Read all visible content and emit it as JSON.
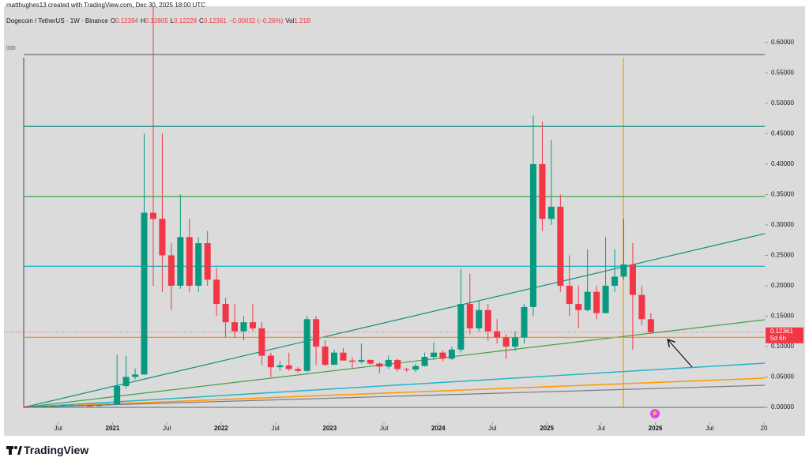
{
  "header": {
    "credit": "matthughes13 created with TradingView.com, Dec 30, 2025 18:00 UTC"
  },
  "footer": {
    "brand": "TradingView"
  },
  "chart_data": {
    "type": "candlestick",
    "title": "Dogecoin / TetherUS · 1W · Binance",
    "legend": [
      [
        "O",
        "0.12394"
      ],
      [
        "H",
        "0.12805"
      ],
      [
        "L",
        "0.12228"
      ],
      [
        "C",
        "0.12361"
      ],
      [
        "",
        "−0.00032 (−0.26%)"
      ],
      [
        "Vol",
        "1.21B"
      ]
    ],
    "clipped_label": "000",
    "x": [
      "2020-03",
      "2020-04",
      "2020-05",
      "2020-06",
      "2020-07",
      "2020-08",
      "2020-09",
      "2020-10",
      "2020-11",
      "2020-12",
      "2021-01",
      "2021-02",
      "2021-03",
      "2021-04",
      "2021-05",
      "2021-06",
      "2021-07",
      "2021-08",
      "2021-09",
      "2021-10",
      "2021-11",
      "2021-12",
      "2022-01",
      "2022-02",
      "2022-03",
      "2022-04",
      "2022-05",
      "2022-06",
      "2022-07",
      "2022-08",
      "2022-09",
      "2022-10",
      "2022-11",
      "2022-12",
      "2023-01",
      "2023-02",
      "2023-03",
      "2023-04",
      "2023-05",
      "2023-06",
      "2023-07",
      "2023-08",
      "2023-09",
      "2023-10",
      "2023-11",
      "2023-12",
      "2024-01",
      "2024-02",
      "2024-03",
      "2024-04",
      "2024-05",
      "2024-06",
      "2024-07",
      "2024-08",
      "2024-09",
      "2024-10",
      "2024-11",
      "2024-12",
      "2025-01",
      "2025-02",
      "2025-03",
      "2025-04",
      "2025-05",
      "2025-06",
      "2025-07",
      "2025-08",
      "2025-09",
      "2025-10",
      "2025-11",
      "2025-12"
    ],
    "open": [
      0.002,
      0.0017,
      0.002,
      0.0025,
      0.0025,
      0.0033,
      0.0035,
      0.0027,
      0.0026,
      0.0034,
      0.0047,
      0.035,
      0.05,
      0.054,
      0.32,
      0.31,
      0.25,
      0.2,
      0.28,
      0.2,
      0.27,
      0.21,
      0.17,
      0.14,
      0.125,
      0.14,
      0.13,
      0.085,
      0.066,
      0.069,
      0.063,
      0.06,
      0.145,
      0.1,
      0.07,
      0.09,
      0.077,
      0.075,
      0.078,
      0.072,
      0.067,
      0.078,
      0.063,
      0.062,
      0.068,
      0.083,
      0.09,
      0.08,
      0.095,
      0.17,
      0.13,
      0.16,
      0.125,
      0.115,
      0.1,
      0.115,
      0.165,
      0.4,
      0.31,
      0.33,
      0.2,
      0.17,
      0.16,
      0.19,
      0.155,
      0.2,
      0.215,
      0.235,
      0.185,
      0.145
    ],
    "high": [
      0.0023,
      0.0022,
      0.0027,
      0.0027,
      0.0045,
      0.004,
      0.0036,
      0.0028,
      0.004,
      0.0053,
      0.087,
      0.085,
      0.064,
      0.45,
      0.74,
      0.45,
      0.27,
      0.35,
      0.31,
      0.28,
      0.29,
      0.23,
      0.18,
      0.17,
      0.15,
      0.17,
      0.14,
      0.09,
      0.076,
      0.09,
      0.066,
      0.15,
      0.15,
      0.11,
      0.095,
      0.098,
      0.083,
      0.105,
      0.079,
      0.074,
      0.085,
      0.08,
      0.065,
      0.072,
      0.09,
      0.107,
      0.094,
      0.1,
      0.228,
      0.22,
      0.175,
      0.17,
      0.145,
      0.12,
      0.125,
      0.17,
      0.48,
      0.47,
      0.44,
      0.35,
      0.25,
      0.2,
      0.26,
      0.2,
      0.28,
      0.26,
      0.31,
      0.27,
      0.2,
      0.155
    ],
    "low": [
      0.0013,
      0.0017,
      0.0019,
      0.0024,
      0.0024,
      0.0031,
      0.0025,
      0.0024,
      0.0025,
      0.0033,
      0.0045,
      0.031,
      0.046,
      0.054,
      0.2,
      0.19,
      0.16,
      0.195,
      0.19,
      0.19,
      0.2,
      0.15,
      0.115,
      0.115,
      0.11,
      0.125,
      0.07,
      0.05,
      0.06,
      0.06,
      0.057,
      0.058,
      0.07,
      0.068,
      0.07,
      0.077,
      0.064,
      0.072,
      0.07,
      0.056,
      0.063,
      0.059,
      0.058,
      0.058,
      0.067,
      0.078,
      0.076,
      0.078,
      0.09,
      0.12,
      0.125,
      0.11,
      0.105,
      0.08,
      0.093,
      0.105,
      0.15,
      0.29,
      0.3,
      0.19,
      0.15,
      0.13,
      0.158,
      0.145,
      0.155,
      0.19,
      0.21,
      0.095,
      0.135,
      0.1222
    ],
    "close": [
      0.0017,
      0.002,
      0.0025,
      0.0025,
      0.0033,
      0.0035,
      0.0027,
      0.0026,
      0.0034,
      0.0047,
      0.035,
      0.05,
      0.054,
      0.32,
      0.31,
      0.25,
      0.2,
      0.28,
      0.2,
      0.27,
      0.21,
      0.17,
      0.14,
      0.125,
      0.14,
      0.13,
      0.085,
      0.066,
      0.069,
      0.063,
      0.06,
      0.145,
      0.1,
      0.07,
      0.09,
      0.077,
      0.075,
      0.078,
      0.072,
      0.067,
      0.078,
      0.063,
      0.062,
      0.068,
      0.083,
      0.09,
      0.08,
      0.095,
      0.17,
      0.13,
      0.16,
      0.125,
      0.115,
      0.1,
      0.115,
      0.165,
      0.4,
      0.31,
      0.33,
      0.2,
      0.17,
      0.16,
      0.19,
      0.155,
      0.2,
      0.215,
      0.235,
      0.185,
      0.145,
      0.12361
    ],
    "up_color": "#089981",
    "down_color": "#f23645",
    "hlines": [
      {
        "value": 0.58,
        "color": "#787b86"
      },
      {
        "value": 0.462,
        "color": "#138f7e"
      },
      {
        "value": 0.347,
        "color": "#43a047"
      },
      {
        "value": 0.232,
        "color": "#22b5c7"
      },
      {
        "value": 0.115,
        "color": "#ff9800"
      }
    ],
    "last_price": {
      "value": 0.12361,
      "label": "0.12361"
    },
    "countdown": "5d 6h",
    "xlim": [
      "2020-01",
      "2027-01"
    ],
    "ylim": [
      -0.0247,
      0.644
    ],
    "yticks": [
      {
        "value": 0,
        "label": "0.00000"
      },
      {
        "value": 0.05,
        "label": "0.05000"
      },
      {
        "value": 0.1,
        "label": "0.10000"
      },
      {
        "value": 0.15,
        "label": "0.15000"
      },
      {
        "value": 0.2,
        "label": "0.20000"
      },
      {
        "value": 0.25,
        "label": "0.25000"
      },
      {
        "value": 0.3,
        "label": "0.30000"
      },
      {
        "value": 0.35,
        "label": "0.35000"
      },
      {
        "value": 0.4,
        "label": "0.40000"
      },
      {
        "value": 0.45,
        "label": "0.45000"
      },
      {
        "value": 0.5,
        "label": "0.50000"
      },
      {
        "value": 0.55,
        "label": "0.55000"
      },
      {
        "value": 0.6,
        "label": "0.60000"
      }
    ],
    "xticks": [
      {
        "value": "2020-07",
        "label": "Jul"
      },
      {
        "value": "2021-01",
        "label": "2021"
      },
      {
        "value": "2021-07",
        "label": "Jul"
      },
      {
        "value": "2022-01",
        "label": "2022"
      },
      {
        "value": "2022-07",
        "label": "Jul"
      },
      {
        "value": "2023-01",
        "label": "2023"
      },
      {
        "value": "2023-07",
        "label": "Jul"
      },
      {
        "value": "2024-01",
        "label": "2024"
      },
      {
        "value": "2024-07",
        "label": "Jul"
      },
      {
        "value": "2025-01",
        "label": "2025"
      },
      {
        "value": "2025-07",
        "label": "Jul"
      },
      {
        "value": "2026-01",
        "label": "2026"
      },
      {
        "value": "2026-07",
        "label": "Jul"
      },
      {
        "value": "2027-01",
        "label": "20"
      }
    ]
  }
}
